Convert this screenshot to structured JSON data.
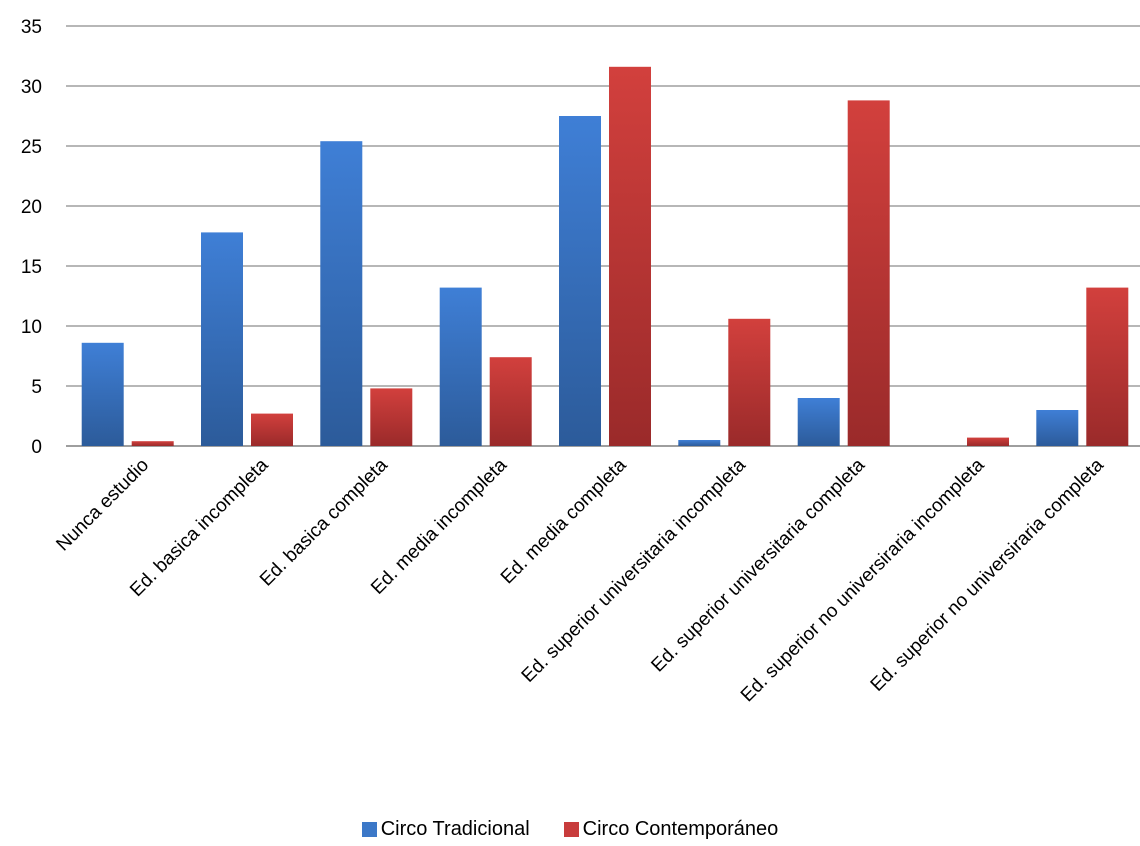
{
  "chart_data": {
    "type": "bar",
    "categories": [
      "Nunca estudio",
      "Ed. basica incompleta",
      "Ed. basica completa",
      "Ed. media incompleta",
      "Ed. media completa",
      "Ed. superior universitaria incompleta",
      "Ed. superior universitaria completa",
      "Ed. superior no universiraria incompleta",
      "Ed. superior no universiraria completa"
    ],
    "series": [
      {
        "name": "Circo Tradicional",
        "color": "#3c78c8",
        "values": [
          8.6,
          17.8,
          25.4,
          13.2,
          27.5,
          0.5,
          4.0,
          0,
          3.0
        ]
      },
      {
        "name": "Circo Contemporáneo",
        "color": "#c83c3c",
        "values": [
          0.4,
          2.7,
          4.8,
          7.4,
          31.6,
          10.6,
          28.8,
          0.7,
          13.2
        ]
      }
    ],
    "ylim": [
      0,
      35
    ],
    "yticks": [
      0,
      5,
      10,
      15,
      20,
      25,
      30,
      35
    ],
    "grid": true,
    "legend_position": "bottom"
  }
}
